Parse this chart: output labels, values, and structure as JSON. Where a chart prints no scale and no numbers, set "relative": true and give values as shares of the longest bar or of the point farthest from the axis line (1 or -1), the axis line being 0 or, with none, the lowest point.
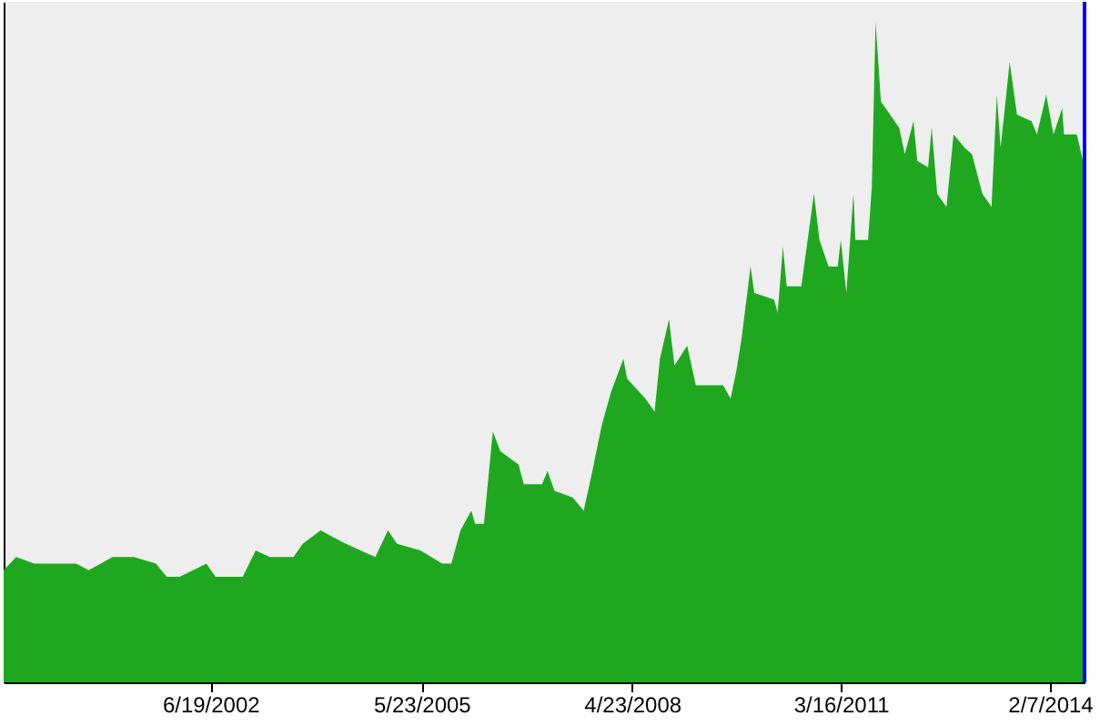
{
  "chart_data": {
    "type": "area",
    "relative": true,
    "grid": false,
    "x": [
      "1999-08-07",
      "1999-10-09",
      "2000-01-10",
      "2000-03-13",
      "2000-08-08",
      "2000-10-11",
      "2001-02-09",
      "2001-05-28",
      "2001-09-16",
      "2001-11-10",
      "2002-01-14",
      "2002-05-30",
      "2002-07-15",
      "2002-11-30",
      "2003-02-03",
      "2003-04-16",
      "2003-08-14",
      "2003-09-29",
      "2003-12-29",
      "2004-03-02",
      "2004-05-06",
      "2004-07-18",
      "2004-10-01",
      "2004-12-04",
      "2005-01-19",
      "2005-05-17",
      "2005-09-05",
      "2005-10-21",
      "2005-12-06",
      "2006-01-30",
      "2006-02-18",
      "2006-04-04",
      "2006-05-19",
      "2006-06-26",
      "2006-09-26",
      "2006-10-23",
      "2007-01-23",
      "2007-02-20",
      "2007-03-27",
      "2007-06-27",
      "2007-08-22",
      "2007-09-28",
      "2007-11-22",
      "2008-01-08",
      "2008-03-10",
      "2008-03-29",
      "2008-06-29",
      "2008-08-15",
      "2008-09-11",
      "2008-10-27",
      "2008-11-24",
      "2009-01-27",
      "2009-03-12",
      "2009-07-28",
      "2009-09-04",
      "2009-10-02",
      "2009-10-29",
      "2009-12-14",
      "2010-01-02",
      "2010-04-12",
      "2010-04-30",
      "2010-05-27",
      "2010-06-15",
      "2010-08-28",
      "2010-10-31",
      "2010-11-28",
      "2011-01-13",
      "2011-02-28",
      "2011-03-16",
      "2011-04-13",
      "2011-05-19",
      "2011-05-29",
      "2011-08-01",
      "2011-08-20",
      "2011-09-08",
      "2011-10-05",
      "2012-01-06",
      "2012-02-03",
      "2012-03-18",
      "2012-04-06",
      "2012-05-31",
      "2012-06-18",
      "2012-07-16",
      "2012-09-01",
      "2012-10-07",
      "2012-12-01",
      "2013-01-08",
      "2013-03-02",
      "2013-04-17",
      "2013-05-14",
      "2013-06-02",
      "2013-06-20",
      "2013-07-18",
      "2013-08-24",
      "2013-11-06",
      "2013-12-03",
      "2014-01-19",
      "2014-02-25",
      "2014-04-10",
      "2014-04-19",
      "2014-06-23",
      "2014-08-01"
    ],
    "series": [
      {
        "color": "#1fa81f",
        "values": [
          0.17,
          0.19,
          0.18,
          0.18,
          0.18,
          0.17,
          0.19,
          0.19,
          0.18,
          0.16,
          0.16,
          0.18,
          0.16,
          0.16,
          0.2,
          0.19,
          0.19,
          0.21,
          0.23,
          0.22,
          0.21,
          0.2,
          0.19,
          0.23,
          0.21,
          0.2,
          0.18,
          0.18,
          0.23,
          0.26,
          0.24,
          0.24,
          0.38,
          0.35,
          0.33,
          0.3,
          0.3,
          0.32,
          0.29,
          0.28,
          0.26,
          0.31,
          0.39,
          0.44,
          0.49,
          0.46,
          0.43,
          0.41,
          0.49,
          0.55,
          0.48,
          0.51,
          0.45,
          0.45,
          0.43,
          0.47,
          0.52,
          0.63,
          0.59,
          0.58,
          0.56,
          0.66,
          0.6,
          0.6,
          0.74,
          0.67,
          0.63,
          0.63,
          0.67,
          0.59,
          0.74,
          0.67,
          0.67,
          0.75,
          1.0,
          0.88,
          0.84,
          0.8,
          0.85,
          0.79,
          0.78,
          0.84,
          0.74,
          0.72,
          0.83,
          0.81,
          0.8,
          0.74,
          0.72,
          0.89,
          0.81,
          0.86,
          0.94,
          0.86,
          0.85,
          0.83,
          0.89,
          0.83,
          0.87,
          0.83,
          0.83,
          0.78
        ]
      }
    ],
    "xlim": [
      "1999-08-07",
      "2014-08-01"
    ],
    "xticks": [
      {
        "value": "2002-06-19",
        "label": "6/19/2002"
      },
      {
        "value": "2005-05-23",
        "label": "5/23/2005"
      },
      {
        "value": "2008-04-23",
        "label": "4/23/2008"
      },
      {
        "value": "2011-03-16",
        "label": "3/16/2011"
      },
      {
        "value": "2014-02-07",
        "label": "2/7/2014"
      }
    ],
    "ref_lines": [
      {
        "axis": "x",
        "value": "2014-08-01",
        "color": "#0000ff"
      }
    ]
  }
}
